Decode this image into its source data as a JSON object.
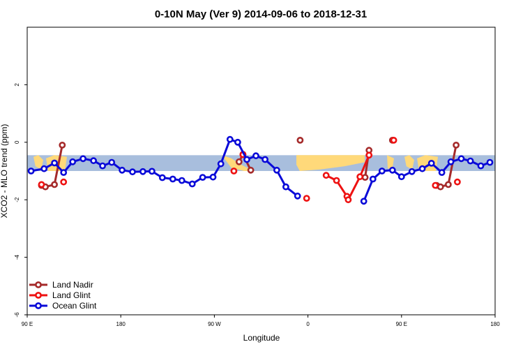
{
  "chart_data": {
    "type": "line",
    "title": "0-10N May (Ver 9)   2014-09-06 to 2018-12-31",
    "xlabel": "Longitude",
    "ylabel": "XCO2 - MLO trend (ppm)",
    "xlim": [
      90,
      450
    ],
    "ylim": [
      -6,
      4
    ],
    "x_ticks": [
      {
        "value": 90,
        "label": "90 E"
      },
      {
        "value": 162,
        "label": "180"
      },
      {
        "value": 234,
        "label": "90 W"
      },
      {
        "value": 306,
        "label": "0"
      },
      {
        "value": 378,
        "label": "90 E"
      },
      {
        "value": 450,
        "label": "180"
      }
    ],
    "y_ticks": [
      {
        "value": -6,
        "label": "-6"
      },
      {
        "value": -4,
        "label": "-4"
      },
      {
        "value": -2,
        "label": "-2"
      },
      {
        "value": 0,
        "label": "0"
      },
      {
        "value": 2,
        "label": "2"
      }
    ],
    "grid": false,
    "legend_position": "bottom-left",
    "band": {
      "ymin": -1.0,
      "ymax": -0.45,
      "ocean_color": "#a8bedd",
      "land_color": "#ffd97a"
    },
    "series": [
      {
        "name": "Land Nadir",
        "color": "#a52a2a",
        "segments": [
          [
            [
              101,
              -1.5
            ],
            [
              104,
              -1.55
            ],
            [
              111,
              -1.47
            ],
            [
              117,
              -0.1
            ]
          ],
          [
            [
              253,
              -0.68
            ],
            [
              256,
              -0.42
            ],
            [
              262,
              -0.97
            ]
          ],
          [
            [
              300,
              0.07
            ]
          ],
          [
            [
              350,
              -1.22
            ],
            [
              353,
              -0.28
            ]
          ],
          [
            [
              371,
              0.07
            ]
          ],
          [
            [
              405,
              -1.5
            ],
            [
              408,
              -1.55
            ],
            [
              414,
              -1.47
            ],
            [
              420,
              -0.1
            ]
          ]
        ]
      },
      {
        "name": "Land Glint",
        "color": "#ee1111",
        "segments": [
          [
            [
              101,
              -1.47
            ]
          ],
          [
            [
              118,
              -1.38
            ]
          ],
          [
            [
              249,
              -1.0
            ]
          ],
          [
            [
              256,
              -0.43
            ]
          ],
          [
            [
              305,
              -1.95
            ]
          ],
          [
            [
              320,
              -1.15
            ],
            [
              328,
              -1.33
            ],
            [
              336,
              -1.88
            ],
            [
              337,
              -2.0
            ],
            [
              346,
              -1.2
            ],
            [
              353,
              -0.45
            ]
          ],
          [
            [
              372,
              0.07
            ]
          ],
          [
            [
              404,
              -1.5
            ]
          ],
          [
            [
              421,
              -1.38
            ]
          ]
        ]
      },
      {
        "name": "Ocean Glint",
        "color": "#0a0ad8",
        "segments": [
          [
            [
              93,
              -1.0
            ],
            [
              103,
              -0.92
            ],
            [
              111,
              -0.72
            ],
            [
              118,
              -1.05
            ],
            [
              125,
              -0.68
            ],
            [
              133,
              -0.57
            ],
            [
              141,
              -0.64
            ],
            [
              148,
              -0.82
            ],
            [
              155,
              -0.7
            ],
            [
              163,
              -0.97
            ],
            [
              171,
              -1.03
            ],
            [
              179,
              -1.02
            ],
            [
              186,
              -1.01
            ],
            [
              194,
              -1.23
            ],
            [
              202,
              -1.28
            ],
            [
              209,
              -1.33
            ],
            [
              217,
              -1.45
            ],
            [
              225,
              -1.22
            ],
            [
              233,
              -1.21
            ],
            [
              239,
              -0.75
            ],
            [
              246,
              0.1
            ],
            [
              252,
              0.0
            ],
            [
              259,
              -0.6
            ],
            [
              266,
              -0.47
            ],
            [
              273,
              -0.6
            ],
            [
              282,
              -0.97
            ],
            [
              289,
              -1.55
            ],
            [
              298,
              -1.87
            ]
          ],
          [
            [
              349,
              -2.05
            ],
            [
              356,
              -1.28
            ],
            [
              363,
              -1.0
            ],
            [
              371,
              -0.97
            ],
            [
              378,
              -1.2
            ],
            [
              386,
              -1.02
            ],
            [
              394,
              -0.92
            ],
            [
              401,
              -0.73
            ],
            [
              409,
              -1.05
            ],
            [
              416,
              -0.68
            ],
            [
              424,
              -0.57
            ],
            [
              431,
              -0.65
            ],
            [
              439,
              -0.82
            ],
            [
              446,
              -0.7
            ]
          ]
        ]
      }
    ]
  }
}
